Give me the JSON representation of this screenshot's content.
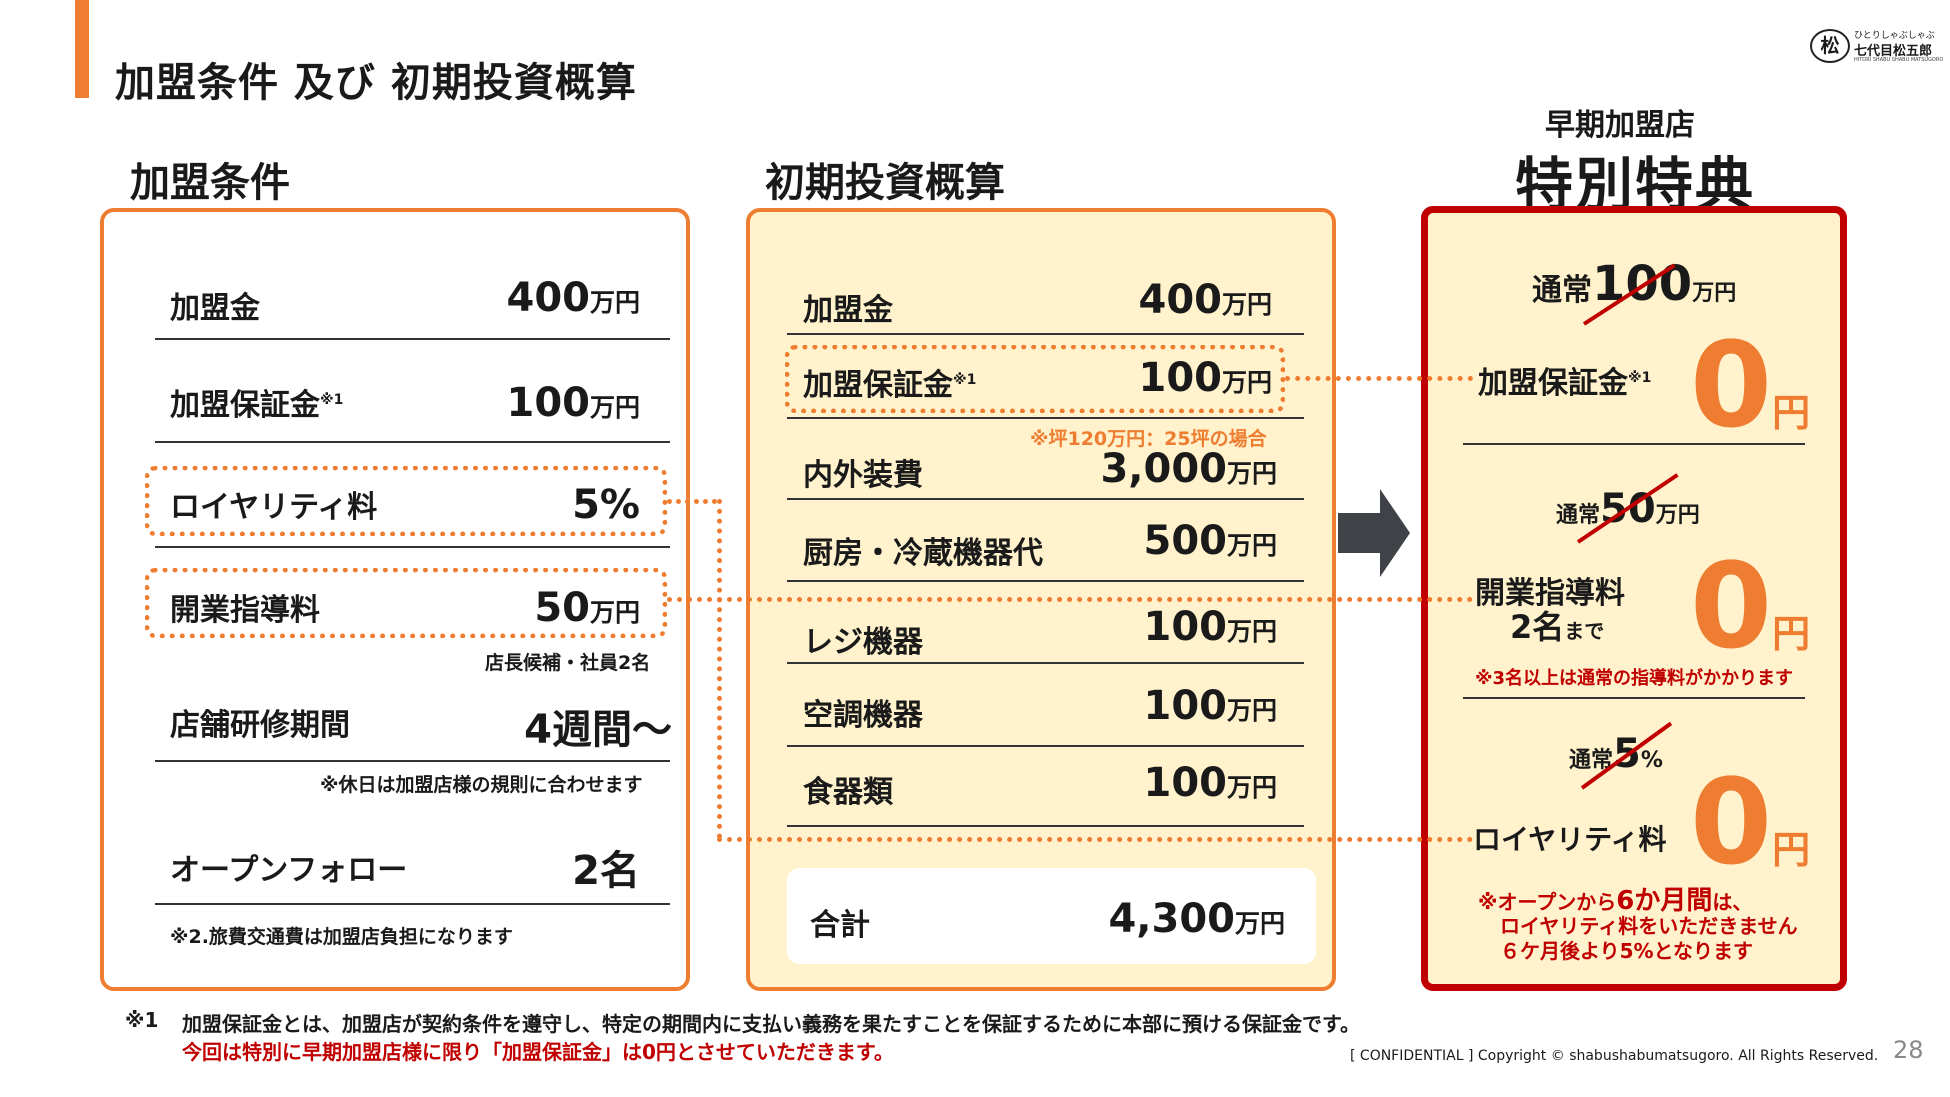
{
  "header": {
    "title": "加盟条件 及び 初期投資概算",
    "logo_symbol": "松",
    "logo_small": "ひとりしゃぶしゃぶ",
    "logo_name": "七代目松五郎",
    "logo_tiny": "HITORI SHABU SHABU MATSUGORO",
    "accent_color": "#ee7d31"
  },
  "conditions": {
    "heading": "加盟条件",
    "rows": [
      {
        "label": "加盟金",
        "value": "400",
        "unit": "万円"
      },
      {
        "label": "加盟保証金",
        "mark": "※1",
        "value": "100",
        "unit": "万円"
      },
      {
        "label": "ロイヤリティ料",
        "value": "5%",
        "unit": ""
      },
      {
        "label": "開業指導料",
        "value": "50",
        "unit": "万円",
        "note": "店長候補・社員2名"
      },
      {
        "label": "店舗研修期間",
        "value": "4週間～",
        "unit": "",
        "note": "※休日は加盟店様の規則に合わせます"
      },
      {
        "label": "オープンフォロー",
        "value": "2名",
        "unit": "",
        "note": "※2.旅費交通費は加盟店負担になります"
      }
    ]
  },
  "investment": {
    "heading": "初期投資概算",
    "rows": [
      {
        "label": "加盟金",
        "value": "400",
        "unit": "万円"
      },
      {
        "label": "加盟保証金",
        "mark": "※1",
        "value": "100",
        "unit": "万円"
      },
      {
        "label": "内外装費",
        "value": "3,000",
        "unit": "万円",
        "note": "※坪120万円：25坪の場合"
      },
      {
        "label": "厨房・冷蔵機器代",
        "value": "500",
        "unit": "万円"
      },
      {
        "label": "レジ機器",
        "value": "100",
        "unit": "万円"
      },
      {
        "label": "空調機器",
        "value": "100",
        "unit": "万円"
      },
      {
        "label": "食器類",
        "value": "100",
        "unit": "万円"
      }
    ],
    "total": {
      "label": "合計",
      "value": "4,300",
      "unit": "万円"
    }
  },
  "special": {
    "subheading": "早期加盟店",
    "heading": "特別特典",
    "items": [
      {
        "normal_prefix": "通常",
        "normal_value": "100",
        "normal_unit": "万円",
        "label": "加盟保証金",
        "mark": "※1",
        "zero": "0",
        "yen": "円"
      },
      {
        "normal_prefix": "通常",
        "normal_value": "50",
        "normal_unit": "万円",
        "label": "開業指導料",
        "label2_value": "2名",
        "label2_suffix": "まで",
        "zero": "0",
        "yen": "円",
        "note": "※3名以上は通常の指導料がかかります"
      },
      {
        "normal_prefix": "通常",
        "normal_value": "5",
        "normal_unit": "%",
        "label": "ロイヤリティ料",
        "zero": "0",
        "yen": "円",
        "note_prefix": "※オープンから",
        "note_highlight": "6か月間",
        "note_suffix": "は、",
        "note_line2": "ロイヤリティ料をいただきません",
        "note_line3": "６ケ月後より5%となります"
      }
    ],
    "border_color": "#c00000"
  },
  "footer": {
    "mark": "※1",
    "line1": "加盟保証金とは、加盟店が契約条件を遵守し、特定の期間内に支払い義務を果たすことを保証するために本部に預ける保証金です。",
    "line2": "今回は特別に早期加盟店様に限り「加盟保証金」は0円とさせていただきます。",
    "copyright": "[ CONFIDENTIAL ] Copyright © shabushabumatsugoro. All Rights Reserved.",
    "page": "28"
  }
}
